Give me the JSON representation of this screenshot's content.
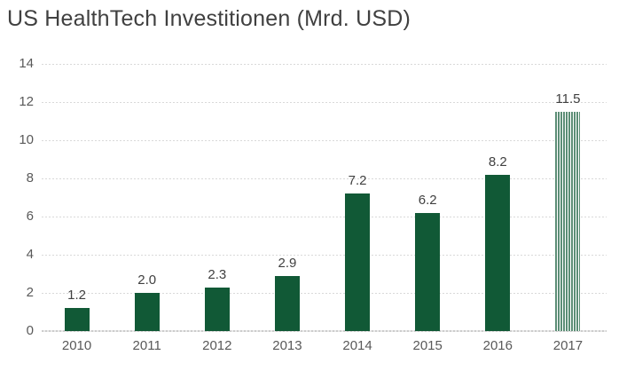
{
  "chart_data": {
    "type": "bar",
    "title": "US HealthTech Investitionen (Mrd. USD)",
    "categories": [
      "2010",
      "2011",
      "2012",
      "2013",
      "2014",
      "2015",
      "2016",
      "2017"
    ],
    "values": [
      1.2,
      2.0,
      2.3,
      2.9,
      7.2,
      6.2,
      8.2,
      11.5
    ],
    "data_labels": [
      "1.2",
      "2.0",
      "2.3",
      "2.9",
      "7.2",
      "6.2",
      "8.2",
      "11.5"
    ],
    "forecast_indices": [
      7
    ],
    "xlabel": "",
    "ylabel": "",
    "ylim": [
      0,
      14
    ],
    "yticks": [
      0,
      2,
      4,
      6,
      8,
      10,
      12,
      14
    ],
    "grid": true,
    "legend": "none",
    "colors": {
      "bar": "#115936",
      "grid": "#d9d9d9",
      "axis_line": "#cccccc",
      "title_text": "#404040",
      "axis_text": "#595959",
      "label_text": "#404040",
      "background": "#ffffff"
    }
  }
}
